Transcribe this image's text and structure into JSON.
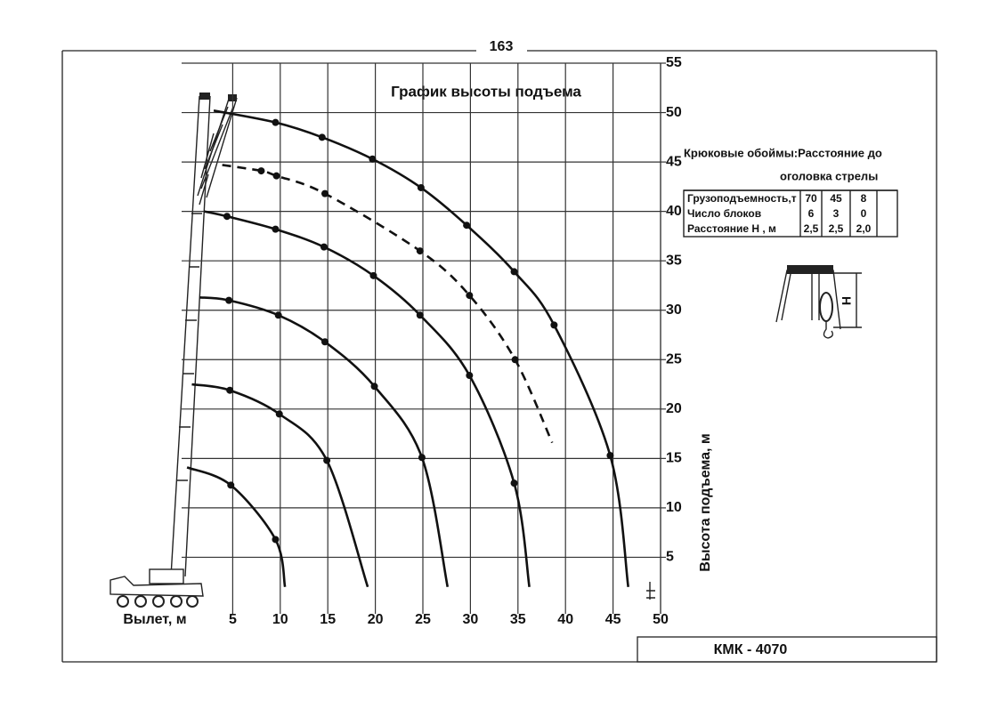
{
  "chart_data": {
    "type": "line",
    "page_number": "163",
    "title": "График высоты подъема",
    "x_label": "Вылет, м",
    "y_label": "Высота подъема, м",
    "model": "КМК - 4070",
    "xlim": [
      0,
      50
    ],
    "xticks": [
      5,
      10,
      15,
      20,
      25,
      30,
      35,
      40,
      45,
      50
    ],
    "ylim": [
      0,
      55
    ],
    "yticks": [
      5,
      10,
      15,
      20,
      25,
      30,
      35,
      40,
      45,
      50,
      55
    ],
    "grid": true,
    "series": [
      {
        "color": "#111111",
        "line_style": "solid",
        "x": [
          3,
          9.5,
          14.4,
          19.7,
          24.8,
          29.6,
          34.6,
          38.8,
          44.7,
          46.6
        ],
        "values": [
          50.2,
          49,
          47.5,
          45.3,
          42.4,
          38.6,
          33.9,
          28.5,
          15.3,
          2
        ]
      },
      {
        "color": "#111111",
        "line_style": "dashed",
        "x": [
          3.9,
          8.0,
          9.6,
          14.7,
          24.7,
          29.9,
          34.7,
          38.6
        ],
        "values": [
          44.7,
          44.1,
          43.6,
          41.8,
          36.0,
          31.5,
          25.0,
          16.6
        ]
      },
      {
        "color": "#111111",
        "line_style": "solid",
        "x": [
          2,
          4.4,
          9.5,
          14.6,
          19.8,
          24.7,
          29.9,
          34.6,
          36.2
        ],
        "values": [
          40,
          39.5,
          38.2,
          36.4,
          33.5,
          29.5,
          23.4,
          12.5,
          2
        ]
      },
      {
        "color": "#111111",
        "line_style": "solid",
        "x": [
          1.5,
          4.6,
          9.8,
          14.7,
          19.9,
          24.9,
          27.6
        ],
        "values": [
          31.3,
          31.0,
          29.5,
          26.8,
          22.3,
          15.1,
          2
        ]
      },
      {
        "color": "#111111",
        "line_style": "solid",
        "x": [
          0.7,
          4.7,
          9.9,
          14.9,
          19.2
        ],
        "values": [
          22.5,
          21.9,
          19.5,
          14.8,
          2
        ]
      },
      {
        "color": "#111111",
        "line_style": "solid",
        "x": [
          0.2,
          4.8,
          9.5,
          10.5
        ],
        "values": [
          14.1,
          12.3,
          6.8,
          2
        ]
      }
    ],
    "hook_table": {
      "title": [
        "Крюковые обоймы:Расстояние до",
        "оголовка стрелы"
      ],
      "rows": [
        [
          "Грузоподъемность,т",
          "70",
          "45",
          "8"
        ],
        [
          "Число блоков",
          "6",
          "3",
          "0"
        ],
        [
          "Расстояние Н , м",
          "2,5",
          "2,5",
          "2,0"
        ]
      ]
    },
    "hook_diagram_label": "Н"
  }
}
